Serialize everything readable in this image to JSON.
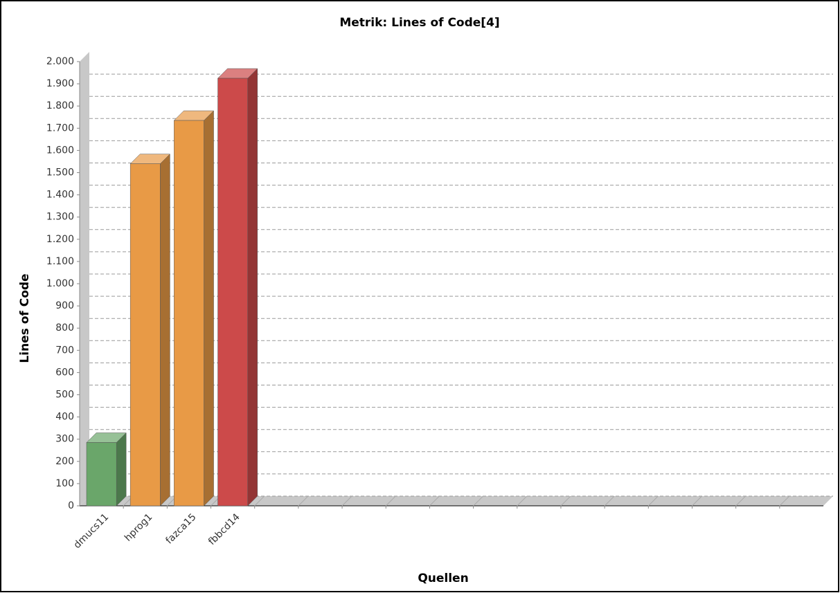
{
  "chart_data": {
    "type": "bar3d",
    "title": "Metrik: Lines of Code[4]",
    "y_label": "Lines of Code",
    "x_label": "Quellen",
    "categories": [
      "dmucs11",
      "hprog1",
      "fazca15",
      "fbbcd14",
      null,
      null,
      null,
      null,
      null,
      null,
      null,
      null,
      null,
      null,
      null,
      null,
      null
    ],
    "values": [
      285,
      1540,
      1735,
      1925,
      null,
      null,
      null,
      null,
      null,
      null,
      null,
      null,
      null,
      null,
      null,
      null,
      null
    ],
    "colors": [
      "#6aa66a",
      "#e89a46",
      "#e89a46",
      "#cc4a4a",
      null,
      null,
      null,
      null,
      null,
      null,
      null,
      null,
      null,
      null,
      null,
      null,
      null
    ],
    "ylim": [
      0,
      2000
    ],
    "yticks": [
      0,
      100,
      200,
      300,
      400,
      500,
      600,
      700,
      800,
      900,
      {
        "value": 1000,
        "label": "1.000"
      },
      {
        "value": 1100,
        "label": "1.100"
      },
      {
        "value": 1200,
        "label": "1.200"
      },
      {
        "value": 1300,
        "label": "1.300"
      },
      {
        "value": 1400,
        "label": "1.400"
      },
      {
        "value": 1500,
        "label": "1.500"
      },
      {
        "value": 1600,
        "label": "1.600"
      },
      {
        "value": 1700,
        "label": "1.700"
      },
      {
        "value": 1800,
        "label": "1.800"
      },
      {
        "value": 1900,
        "label": "1.900"
      },
      {
        "value": 2000,
        "label": "2.000"
      }
    ],
    "grid": true
  }
}
